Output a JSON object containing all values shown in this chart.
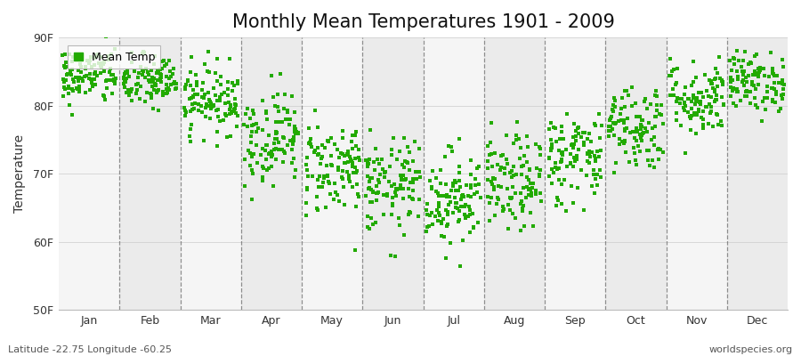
{
  "title": "Monthly Mean Temperatures 1901 - 2009",
  "ylabel": "Temperature",
  "xlabel": "",
  "ylim": [
    50,
    90
  ],
  "yticks": [
    50,
    60,
    70,
    80,
    90
  ],
  "ytick_labels": [
    "50F",
    "60F",
    "70F",
    "80F",
    "90F"
  ],
  "months": [
    "Jan",
    "Feb",
    "Mar",
    "Apr",
    "May",
    "Jun",
    "Jul",
    "Aug",
    "Sep",
    "Oct",
    "Nov",
    "Dec"
  ],
  "dot_color": "#22aa00",
  "legend_label": "Mean Temp",
  "bottom_left_text": "Latitude -22.75 Longitude -60.25",
  "bottom_right_text": "worldspecies.org",
  "title_fontsize": 15,
  "background_color": "#ffffff",
  "band_color_odd": "#ebebeb",
  "band_color_even": "#f5f5f5",
  "monthly_means": [
    84.5,
    83.5,
    81.0,
    75.5,
    71.0,
    68.0,
    66.5,
    68.5,
    72.5,
    77.0,
    81.0,
    83.5
  ],
  "monthly_stds": [
    2.2,
    2.0,
    2.5,
    3.5,
    3.5,
    3.5,
    3.5,
    3.5,
    3.5,
    3.2,
    2.8,
    2.2
  ],
  "n_years": 109,
  "seed": 42
}
